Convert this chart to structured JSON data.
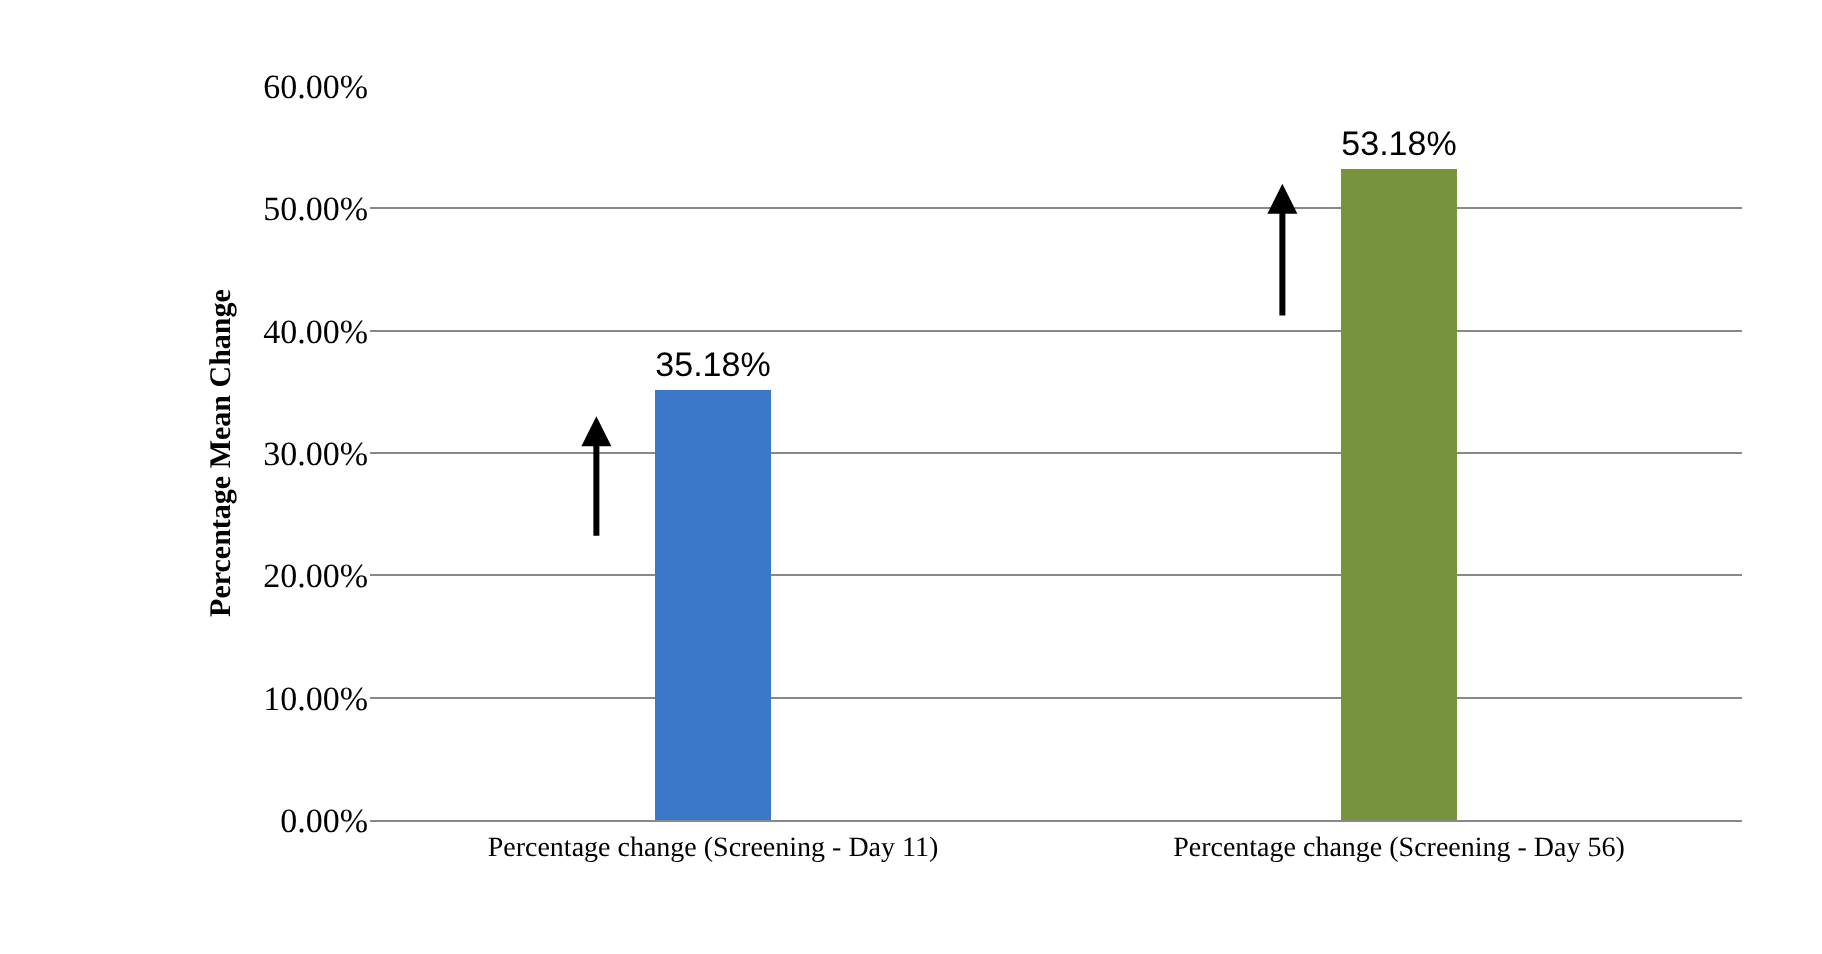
{
  "chart_data": {
    "type": "bar",
    "ylabel": "Percentage Mean Change",
    "categories": [
      "Percentage change (Screening - Day 11)",
      "Percentage change (Screening - Day 56)"
    ],
    "values": [
      35.18,
      53.18
    ],
    "colors": [
      "#3b78c9",
      "#77933c"
    ],
    "value_labels": [
      "35.18%",
      "53.18%"
    ],
    "ylim": [
      0,
      60
    ],
    "yticks": [
      {
        "value": 0,
        "label": "0.00%"
      },
      {
        "value": 10,
        "label": "10.00%"
      },
      {
        "value": 20,
        "label": "20.00%"
      },
      {
        "value": 30,
        "label": "30.00%"
      },
      {
        "value": 40,
        "label": "40.00%"
      },
      {
        "value": 50,
        "label": "50.00%"
      },
      {
        "value": 60,
        "label": "60.00%"
      }
    ],
    "grid": "y",
    "legend": false
  }
}
